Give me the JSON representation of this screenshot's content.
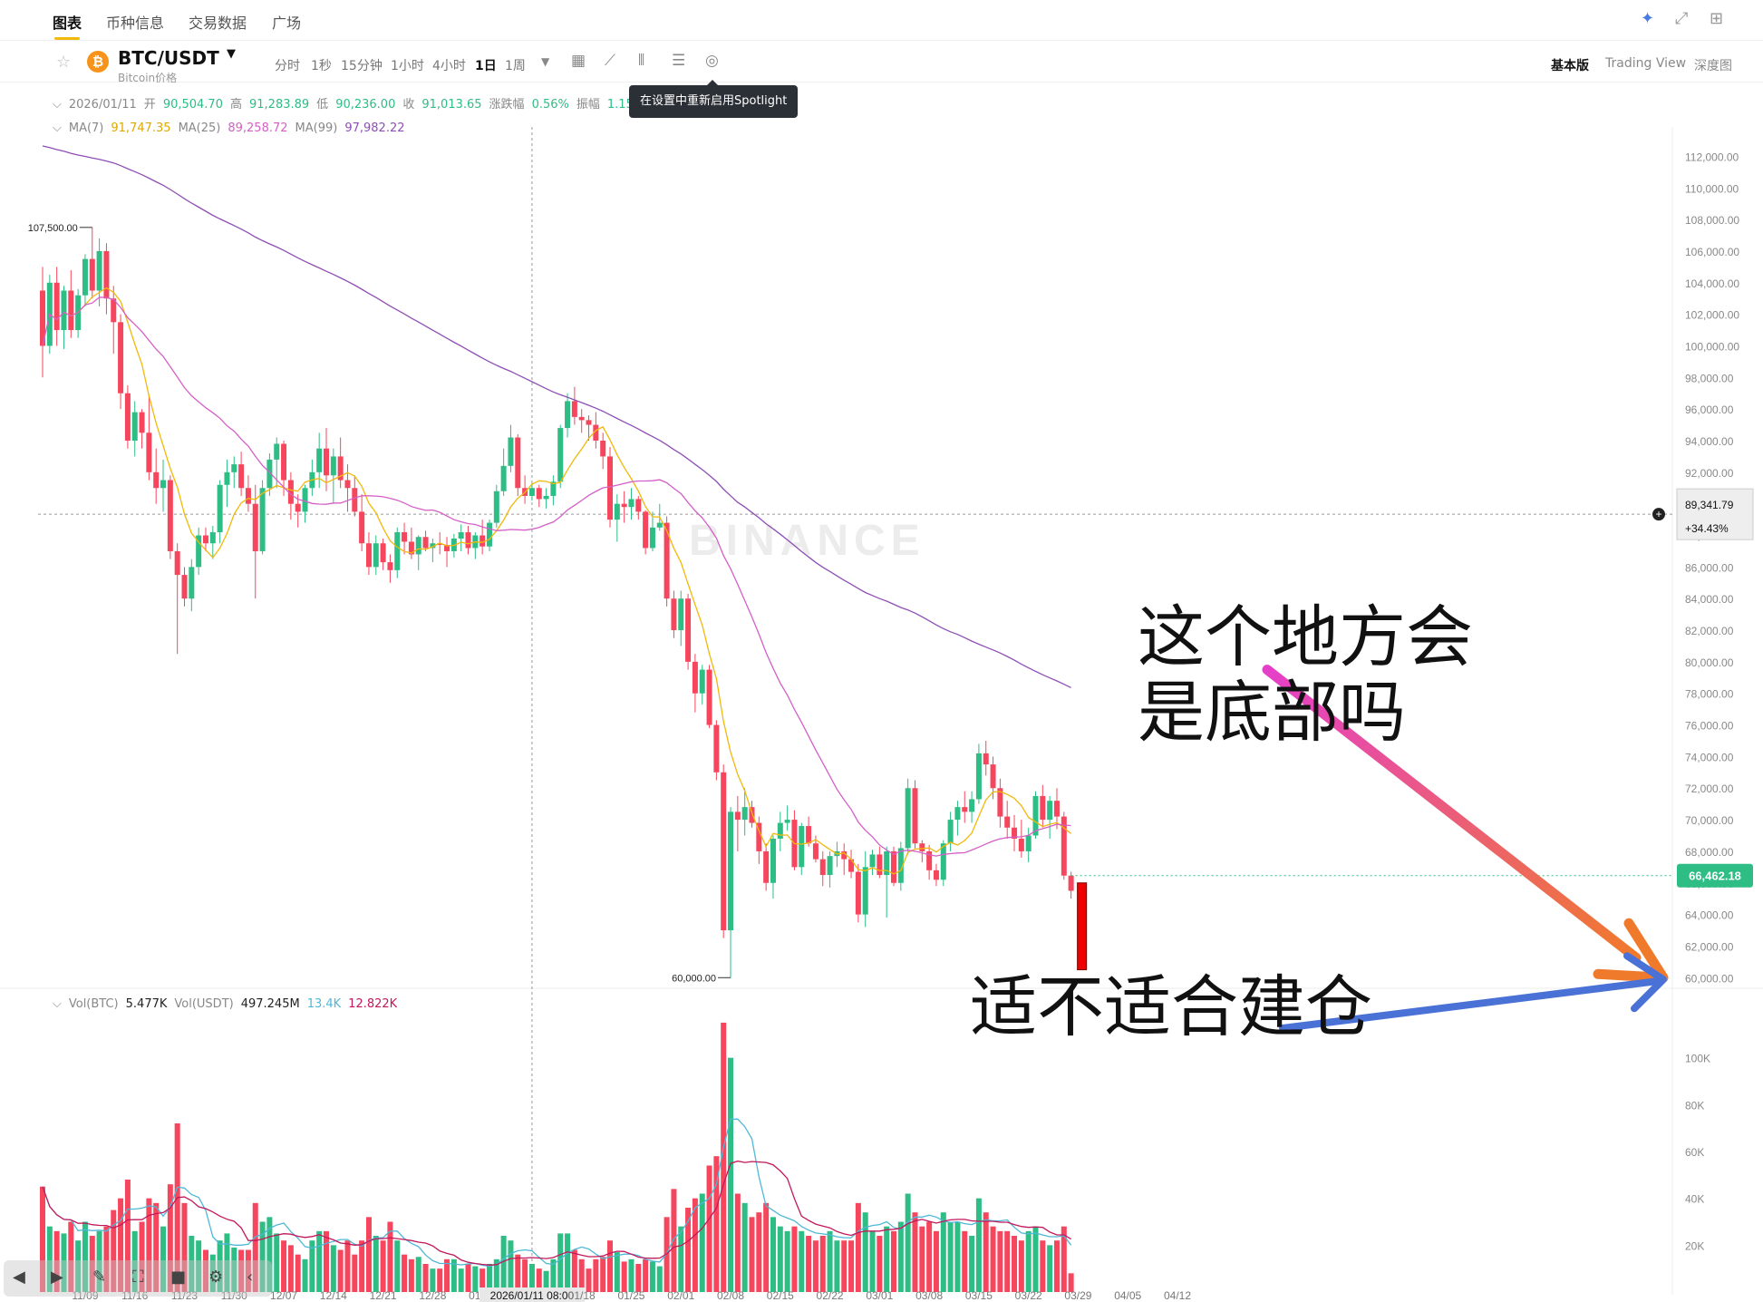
{
  "nav": {
    "tabs": [
      "图表",
      "币种信息",
      "交易数据",
      "广场"
    ],
    "active": 0
  },
  "symbol": {
    "pair": "BTC/USDT",
    "subtitle": "Bitcoin价格"
  },
  "toolbar": {
    "timeframes": [
      "分时",
      "1秒",
      "15分钟",
      "1小时",
      "4小时",
      "1日",
      "1周"
    ],
    "selected_timeframe": "1日",
    "views": [
      "基本版",
      "Trading View",
      "深度图"
    ],
    "selected_view": "基本版"
  },
  "tooltip": "在设置中重新启用Spotlight",
  "ohlc": {
    "date": "2026/01/11",
    "open_label": "开",
    "open": "90,504.70",
    "high_label": "高",
    "high": "91,283.89",
    "low_label": "低",
    "low": "90,236.00",
    "close_label": "收",
    "close": "91,013.65",
    "chg_label": "涨跌幅",
    "chg": "0.56%",
    "amp_label": "振幅",
    "amp": "1.15"
  },
  "ma": {
    "ma7_label": "MA(7)",
    "ma7": "91,747.35",
    "ma25_label": "MA(25)",
    "ma25": "89,258.72",
    "ma99_label": "MA(99)",
    "ma99": "97,982.22"
  },
  "vol_legend": {
    "btc_label": "Vol(BTC)",
    "btc": "5.477K",
    "usdt_label": "Vol(USDT)",
    "usdt": "497.245M",
    "v1": "13.4K",
    "v2": "12.822K"
  },
  "colors": {
    "up": "#2ebd85",
    "down": "#f6465d",
    "ma7": "#f0b90b",
    "ma25": "#d55fc7",
    "ma99": "#8e4fb5",
    "vol_ma1": "#4fb8d6",
    "vol_ma2": "#c2185b",
    "arrow_top_start": "#e53fc9",
    "arrow_top_end": "#f07a2b",
    "arrow_bottom": "#4a72d6"
  },
  "annotations": {
    "line1": "这个地方会",
    "line2": "是底部吗",
    "line3": "适不适合建仓"
  },
  "watermark": "BINANCE",
  "chart_data": {
    "type": "candlestick",
    "interval": "1d",
    "price_axis": {
      "ticks": [
        "112,000.00",
        "110,000.00",
        "108,000.00",
        "106,000.00",
        "104,000.00",
        "102,000.00",
        "100,000.00",
        "98,000.00",
        "96,000.00",
        "94,000.00",
        "92,000.00",
        "90,000.00",
        "88,000.00",
        "86,000.00",
        "84,000.00",
        "82,000.00",
        "80,000.00",
        "78,000.00",
        "76,000.00",
        "74,000.00",
        "72,000.00",
        "70,000.00",
        "68,000.00",
        "66,000.00",
        "64,000.00",
        "62,000.00",
        "60,000.00"
      ],
      "ylim": [
        59500,
        113000
      ]
    },
    "volume_axis": {
      "ticks": [
        "100K",
        "80K",
        "60K",
        "40K",
        "20K"
      ]
    },
    "x_ticks": [
      "11/09",
      "11/16",
      "11/23",
      "11/30",
      "12/07",
      "12/14",
      "12/21",
      "12/28",
      "01/04",
      "2026/01/11 08:00",
      "01/18",
      "01/25",
      "02/01",
      "02/08",
      "02/15",
      "02/22",
      "03/01",
      "03/08",
      "03/15",
      "03/22",
      "03/29",
      "04/05",
      "04/12"
    ],
    "crosshair": {
      "date": "2026/01/11 08:00",
      "price": "89,341.79",
      "pct": "+34.43%"
    },
    "last_price": "66,462.18",
    "marks": {
      "high": "107,500.00",
      "low": "60,000.00"
    },
    "start_date": "2025-11-03",
    "candles": [
      [
        103500,
        105000,
        98000,
        100000,
        45
      ],
      [
        100000,
        104500,
        99500,
        104000,
        28
      ],
      [
        104000,
        105000,
        100000,
        101000,
        26
      ],
      [
        101000,
        103800,
        99800,
        103500,
        25
      ],
      [
        103500,
        104800,
        100500,
        101000,
        30
      ],
      [
        101000,
        103600,
        100500,
        103200,
        22
      ],
      [
        103200,
        105800,
        102500,
        105500,
        30
      ],
      [
        105500,
        107500,
        103000,
        103500,
        24
      ],
      [
        103500,
        106800,
        102500,
        106000,
        26
      ],
      [
        106000,
        106500,
        102000,
        103000,
        28
      ],
      [
        103000,
        103800,
        99500,
        101500,
        35
      ],
      [
        101500,
        102000,
        96000,
        97000,
        40
      ],
      [
        97000,
        97500,
        93500,
        94000,
        48
      ],
      [
        94000,
        96500,
        93000,
        95800,
        26
      ],
      [
        95800,
        96000,
        93500,
        94500,
        30
      ],
      [
        94500,
        96800,
        91500,
        92000,
        40
      ],
      [
        92000,
        93500,
        90000,
        91000,
        38
      ],
      [
        91000,
        92800,
        89500,
        91500,
        28
      ],
      [
        91500,
        91800,
        86500,
        87000,
        46
      ],
      [
        87000,
        87500,
        80500,
        85500,
        72
      ],
      [
        85500,
        86000,
        83500,
        84000,
        38
      ],
      [
        84000,
        86500,
        83200,
        86000,
        24
      ],
      [
        86000,
        88500,
        85500,
        88000,
        22
      ],
      [
        88000,
        88500,
        87000,
        87500,
        18
      ],
      [
        87500,
        88600,
        86500,
        88200,
        16
      ],
      [
        88200,
        91500,
        87500,
        91200,
        22
      ],
      [
        91200,
        92800,
        89800,
        92000,
        25
      ],
      [
        92000,
        93000,
        91000,
        92500,
        19
      ],
      [
        92500,
        93300,
        90500,
        91000,
        18
      ],
      [
        91000,
        91800,
        89500,
        90000,
        18
      ],
      [
        90000,
        91200,
        84000,
        87000,
        38
      ],
      [
        87000,
        91500,
        86800,
        91000,
        30
      ],
      [
        91000,
        93200,
        90500,
        92800,
        32
      ],
      [
        92800,
        94200,
        91000,
        93800,
        25
      ],
      [
        93800,
        94000,
        90500,
        91500,
        22
      ],
      [
        91500,
        92000,
        89000,
        90000,
        20
      ],
      [
        90000,
        90600,
        88500,
        89500,
        16
      ],
      [
        89500,
        91200,
        88800,
        91000,
        14
      ],
      [
        91000,
        92800,
        90500,
        92000,
        22
      ],
      [
        92000,
        94500,
        91000,
        93500,
        26
      ],
      [
        93500,
        94800,
        90800,
        91800,
        26
      ],
      [
        91800,
        93500,
        90000,
        93000,
        20
      ],
      [
        93000,
        94200,
        91000,
        91500,
        18
      ],
      [
        91500,
        92500,
        89500,
        91000,
        22
      ],
      [
        91000,
        91800,
        89200,
        89500,
        16
      ],
      [
        89500,
        90600,
        87000,
        87500,
        22
      ],
      [
        87500,
        88200,
        85500,
        86000,
        32
      ],
      [
        86000,
        88000,
        85500,
        87500,
        24
      ],
      [
        87500,
        87800,
        85800,
        86300,
        22
      ],
      [
        86300,
        86800,
        85000,
        85800,
        30
      ],
      [
        85800,
        88500,
        85300,
        88200,
        22
      ],
      [
        88200,
        88800,
        86800,
        87600,
        16
      ],
      [
        87600,
        88500,
        86500,
        86800,
        14
      ],
      [
        86800,
        88000,
        85800,
        87900,
        15
      ],
      [
        87900,
        88300,
        87000,
        87200,
        12
      ],
      [
        87200,
        87800,
        86300,
        87500,
        10
      ],
      [
        87500,
        88200,
        86800,
        87400,
        10
      ],
      [
        87400,
        87900,
        86000,
        87000,
        14
      ],
      [
        87000,
        88100,
        86600,
        87800,
        14
      ],
      [
        87800,
        88700,
        87000,
        88200,
        10
      ],
      [
        88200,
        88600,
        86800,
        87200,
        12
      ],
      [
        87200,
        88200,
        86500,
        88000,
        11
      ],
      [
        88000,
        89000,
        86800,
        87300,
        10
      ],
      [
        87300,
        89000,
        87000,
        88800,
        12
      ],
      [
        88800,
        91200,
        88500,
        90800,
        14
      ],
      [
        90800,
        93500,
        90500,
        92400,
        24
      ],
      [
        92400,
        95000,
        92000,
        94200,
        22
      ],
      [
        94200,
        94400,
        90500,
        91000,
        16
      ],
      [
        91000,
        91800,
        90000,
        90500,
        14
      ],
      [
        90500,
        91300,
        90200,
        91000,
        12
      ],
      [
        91000,
        91200,
        89800,
        90300,
        10
      ],
      [
        90300,
        91000,
        89700,
        90500,
        9
      ],
      [
        90500,
        91800,
        89900,
        91400,
        14
      ],
      [
        91400,
        95000,
        91000,
        94800,
        25
      ],
      [
        94800,
        97000,
        94200,
        96500,
        25
      ],
      [
        96500,
        97400,
        95000,
        95500,
        18
      ],
      [
        95500,
        96000,
        94500,
        95300,
        14
      ],
      [
        95300,
        95600,
        94000,
        95000,
        10
      ],
      [
        95000,
        95800,
        93500,
        94000,
        14
      ],
      [
        94000,
        94500,
        92200,
        93000,
        15
      ],
      [
        93000,
        93600,
        88500,
        89000,
        22
      ],
      [
        89000,
        90600,
        87600,
        90000,
        17
      ],
      [
        90000,
        90800,
        88800,
        89800,
        13
      ],
      [
        89800,
        91000,
        89000,
        90300,
        14
      ],
      [
        90300,
        90500,
        89000,
        89500,
        12
      ],
      [
        89500,
        89600,
        86800,
        87200,
        14
      ],
      [
        87200,
        89500,
        87000,
        88500,
        13
      ],
      [
        88500,
        90000,
        88300,
        88800,
        11
      ],
      [
        88800,
        89200,
        83500,
        84000,
        32
      ],
      [
        84000,
        84500,
        81500,
        82000,
        44
      ],
      [
        82000,
        84500,
        81000,
        84000,
        28
      ],
      [
        84000,
        84300,
        79500,
        80000,
        36
      ],
      [
        80000,
        80500,
        76800,
        78000,
        40
      ],
      [
        78000,
        79800,
        77300,
        79500,
        42
      ],
      [
        79500,
        79800,
        75800,
        76000,
        54
      ],
      [
        76000,
        76300,
        72500,
        73000,
        58
      ],
      [
        73000,
        73500,
        62500,
        63000,
        115
      ],
      [
        63000,
        70800,
        60000,
        70500,
        100
      ],
      [
        70500,
        71500,
        68000,
        70000,
        42
      ],
      [
        70000,
        72000,
        69000,
        70800,
        38
      ],
      [
        70800,
        71200,
        69500,
        69800,
        32
      ],
      [
        69800,
        70200,
        67200,
        68000,
        34
      ],
      [
        68000,
        68500,
        65500,
        66000,
        38
      ],
      [
        66000,
        69000,
        65000,
        68800,
        32
      ],
      [
        68800,
        70500,
        68000,
        69800,
        28
      ],
      [
        69800,
        70900,
        69300,
        70000,
        26
      ],
      [
        70000,
        70600,
        66800,
        67000,
        28
      ],
      [
        67000,
        69800,
        66500,
        69600,
        26
      ],
      [
        69600,
        70200,
        68300,
        68500,
        24
      ],
      [
        68500,
        69000,
        67300,
        67500,
        22
      ],
      [
        67500,
        68000,
        65800,
        66500,
        24
      ],
      [
        66500,
        68000,
        65700,
        67700,
        26
      ],
      [
        67700,
        68600,
        67000,
        68000,
        22
      ],
      [
        68000,
        68500,
        66500,
        67500,
        22
      ],
      [
        67500,
        68100,
        66300,
        66700,
        22
      ],
      [
        66700,
        67200,
        63500,
        64000,
        38
      ],
      [
        64000,
        68000,
        63200,
        67000,
        34
      ],
      [
        67000,
        68100,
        66500,
        67800,
        26
      ],
      [
        67800,
        68300,
        66300,
        66500,
        24
      ],
      [
        66500,
        68300,
        63800,
        68000,
        28
      ],
      [
        68000,
        68300,
        65800,
        66000,
        26
      ],
      [
        66000,
        68600,
        65500,
        68200,
        30
      ],
      [
        68200,
        72600,
        67800,
        72000,
        42
      ],
      [
        72000,
        72500,
        68200,
        68500,
        34
      ],
      [
        68500,
        68700,
        67300,
        68000,
        28
      ],
      [
        68000,
        68400,
        66200,
        66800,
        30
      ],
      [
        66800,
        67200,
        65800,
        66200,
        26
      ],
      [
        66200,
        68700,
        65800,
        68500,
        34
      ],
      [
        68500,
        70500,
        68000,
        70000,
        30
      ],
      [
        70000,
        71200,
        69000,
        70800,
        30
      ],
      [
        70800,
        71800,
        69800,
        70500,
        26
      ],
      [
        70500,
        71800,
        69800,
        71300,
        24
      ],
      [
        71300,
        74800,
        71000,
        74200,
        40
      ],
      [
        74200,
        75000,
        72800,
        73500,
        34
      ],
      [
        73500,
        74000,
        71300,
        72000,
        28
      ],
      [
        72000,
        72600,
        69500,
        70200,
        26
      ],
      [
        70200,
        71200,
        68800,
        69500,
        26
      ],
      [
        69500,
        70300,
        68000,
        68800,
        24
      ],
      [
        68800,
        70000,
        67600,
        68000,
        22
      ],
      [
        68000,
        69500,
        67300,
        69000,
        26
      ],
      [
        69000,
        71800,
        68800,
        71500,
        28
      ],
      [
        71500,
        72200,
        69500,
        70000,
        22
      ],
      [
        70000,
        71500,
        68800,
        71200,
        20
      ],
      [
        71200,
        72000,
        69400,
        70200,
        22
      ],
      [
        70200,
        70500,
        66200,
        66462,
        28
      ],
      [
        66462,
        66700,
        65000,
        65500,
        8
      ]
    ],
    "vol_ma1_key": "MA short",
    "vol_ma2_key": "MA long"
  }
}
